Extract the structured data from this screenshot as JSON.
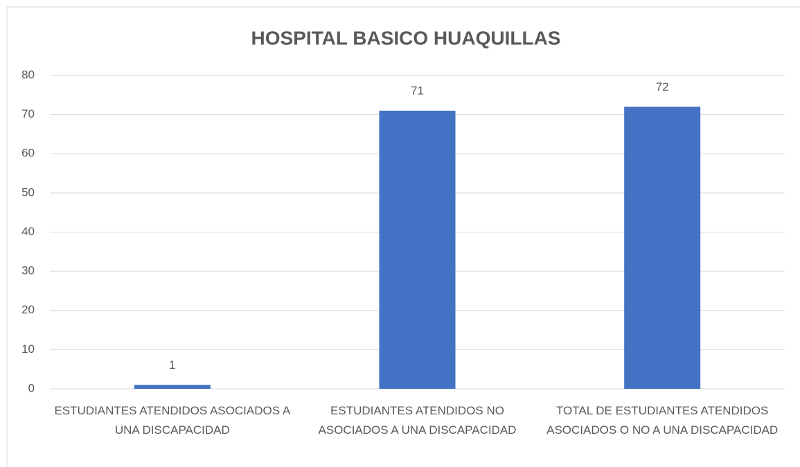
{
  "chart_data": {
    "type": "bar",
    "title": "HOSPITAL BASICO HUAQUILLAS",
    "categories": [
      "ESTUDIANTES ATENDIDOS ASOCIADOS A UNA DISCAPACIDAD",
      "ESTUDIANTES ATENDIDOS NO ASOCIADOS A UNA DISCAPACIDAD",
      "TOTAL DE ESTUDIANTES ATENDIDOS ASOCIADOS O NO A UNA DISCAPACIDAD"
    ],
    "values": [
      1,
      71,
      72
    ],
    "color": "#4472c4",
    "ylim": [
      0,
      80
    ],
    "yticks": [
      0,
      10,
      20,
      30,
      40,
      50,
      60,
      70,
      80
    ],
    "grid": true
  }
}
